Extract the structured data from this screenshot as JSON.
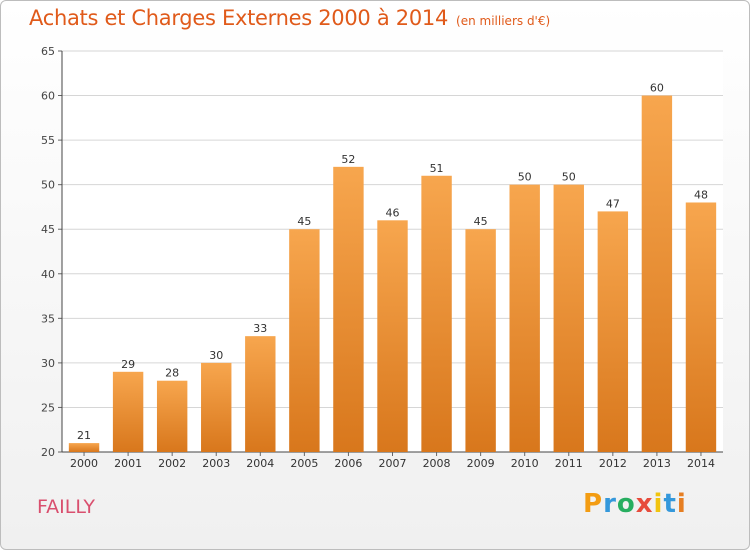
{
  "title": "Achats et Charges Externes 2000 à 2014",
  "unit": "(en milliers d'€)",
  "commune": "FAILLY",
  "logo": {
    "letters": [
      "P",
      "r",
      "o",
      "x",
      "i",
      "t",
      "i"
    ],
    "colors": [
      "#f39c12",
      "#3498db",
      "#27ae60",
      "#e74c3c",
      "#f1c40f",
      "#3498db",
      "#e67e22"
    ]
  },
  "colors": {
    "bar_top": "#f7a64e",
    "bar_bottom": "#d8771c",
    "title": "#e05a1a",
    "commune": "#d94f6e"
  },
  "chart_data": {
    "type": "bar",
    "categories": [
      "2000",
      "2001",
      "2002",
      "2003",
      "2004",
      "2005",
      "2006",
      "2007",
      "2008",
      "2009",
      "2010",
      "2011",
      "2012",
      "2013",
      "2014"
    ],
    "values": [
      21,
      29,
      28,
      30,
      33,
      45,
      52,
      46,
      51,
      45,
      50,
      50,
      47,
      60,
      48
    ],
    "title": "Achats et Charges Externes 2000 à 2014",
    "xlabel": "",
    "ylabel": "",
    "ylim": [
      20,
      65
    ],
    "yticks": [
      20,
      25,
      30,
      35,
      40,
      45,
      50,
      55,
      60,
      65
    ],
    "grid": true,
    "legend": "none"
  }
}
